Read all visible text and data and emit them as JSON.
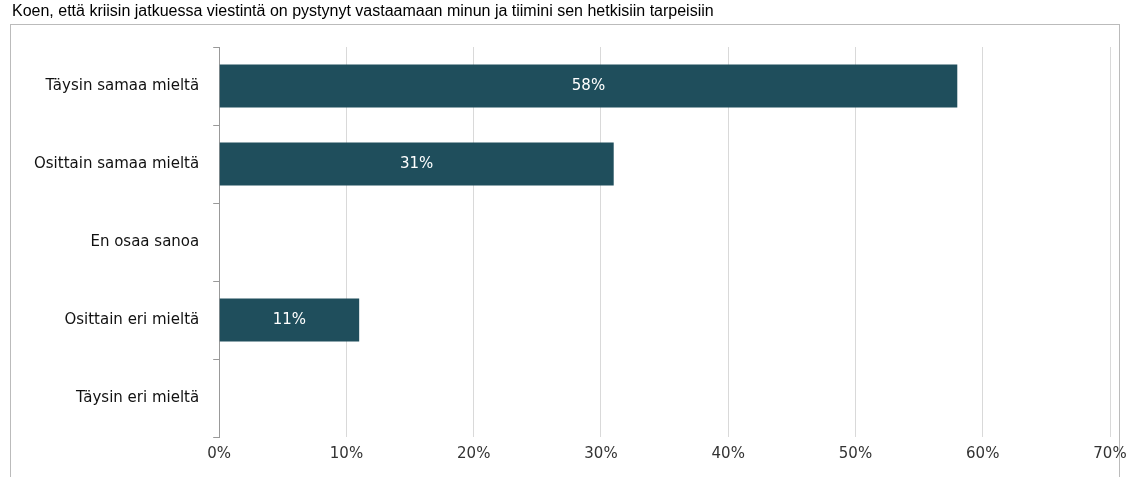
{
  "chart_data": {
    "type": "bar",
    "orientation": "horizontal",
    "title": "Koen, että kriisin jatkuessa viestintä on pystynyt vastaamaan minun ja tiimini sen hetkisiin tarpeisiin",
    "categories": [
      "Täysin samaa mieltä",
      "Osittain samaa mieltä",
      "En osaa sanoa",
      "Osittain eri mieltä",
      "Täysin eri mieltä"
    ],
    "values": [
      58,
      31,
      0,
      11,
      0
    ],
    "value_labels": [
      "58%",
      "31%",
      null,
      "11%",
      null
    ],
    "color": "#1f4e5c",
    "xlim": [
      0,
      70
    ],
    "xticks": [
      {
        "value": 0,
        "label": "0%"
      },
      {
        "value": 10,
        "label": "10%"
      },
      {
        "value": 20,
        "label": "20%"
      },
      {
        "value": 30,
        "label": "30%"
      },
      {
        "value": 40,
        "label": "40%"
      },
      {
        "value": 50,
        "label": "50%"
      },
      {
        "value": 60,
        "label": "60%"
      },
      {
        "value": 70,
        "label": "70%"
      }
    ],
    "grid": "x",
    "legend": false
  }
}
